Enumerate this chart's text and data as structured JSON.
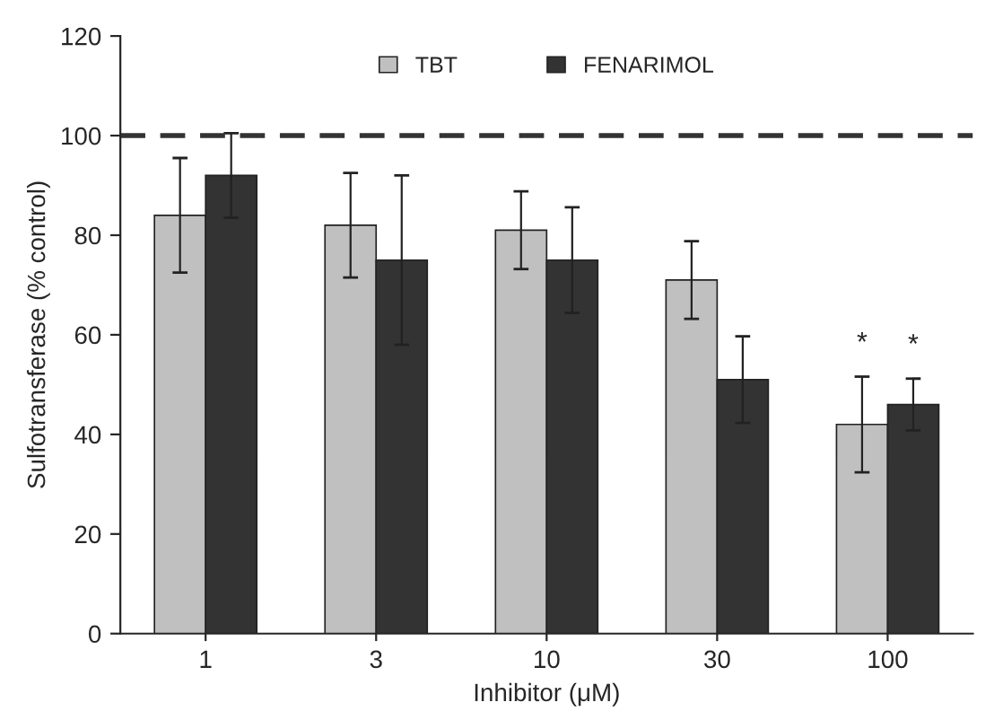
{
  "chart_data": {
    "type": "bar",
    "xlabel": "Inhibitor (μM)",
    "ylabel": "Sulfotransferase (% control)",
    "categories": [
      "1",
      "3",
      "10",
      "30",
      "100"
    ],
    "series": [
      {
        "name": "TBT",
        "color": "#c0c0c0",
        "values": [
          84,
          82,
          81,
          71,
          42
        ],
        "errors": [
          11.5,
          10.5,
          7.8,
          7.8,
          9.6
        ]
      },
      {
        "name": "FENARIMOL",
        "color": "#333333",
        "values": [
          92,
          75,
          75,
          51,
          46
        ],
        "errors": [
          8.5,
          17,
          10.6,
          8.7,
          5.2
        ]
      }
    ],
    "ylim": [
      0,
      120
    ],
    "yticks": [
      0,
      20,
      40,
      60,
      80,
      100,
      120
    ],
    "grid": false,
    "legend": "top",
    "ref_lines": [
      {
        "axis": "y",
        "value": 100,
        "color": "#333333",
        "line_style": "dashed"
      }
    ],
    "annotations": [
      "*",
      "*"
    ]
  }
}
